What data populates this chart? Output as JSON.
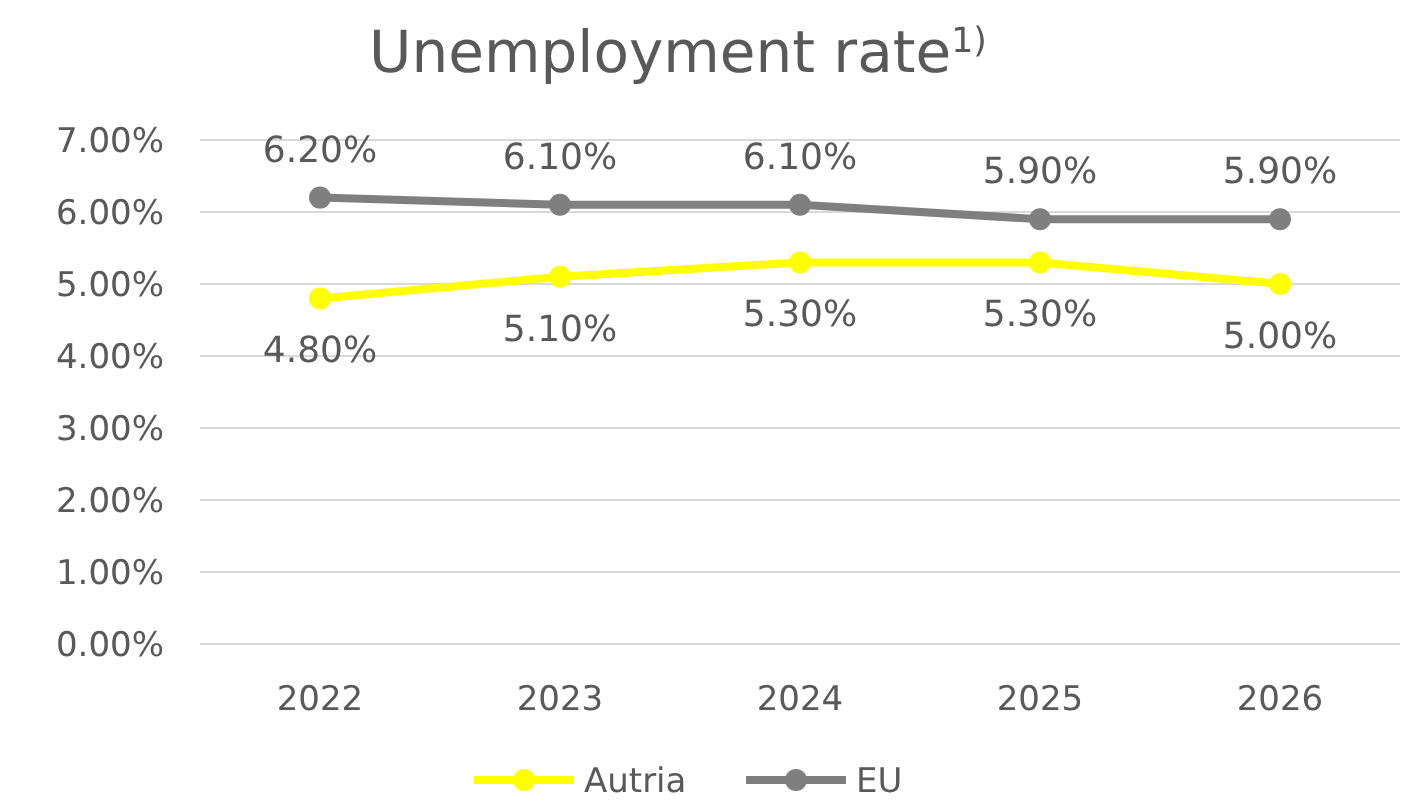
{
  "chart_data": {
    "type": "line",
    "title": "Unemployment rate$^{1)}$",
    "categories": [
      "2022",
      "2023",
      "2024",
      "2025",
      "2026"
    ],
    "series": [
      {
        "name": "Autria",
        "color": "#ffff00",
        "values": [
          4.8,
          5.1,
          5.3,
          5.3,
          5.0
        ],
        "value_labels": [
          "4.80%",
          "5.10%",
          "5.30%",
          "5.30%",
          "5.00%"
        ]
      },
      {
        "name": "EU",
        "color": "#7f7f7f",
        "values": [
          6.2,
          6.1,
          6.1,
          5.9,
          5.9
        ],
        "value_labels": [
          "6.20%",
          "6.10%",
          "6.10%",
          "5.90%",
          "5.90%"
        ]
      }
    ],
    "ylim": [
      0,
      7
    ],
    "yticks": [
      {
        "value": 0,
        "label": "0.00%"
      },
      {
        "value": 1,
        "label": "1.00%"
      },
      {
        "value": 2,
        "label": "2.00%"
      },
      {
        "value": 3,
        "label": "3.00%"
      },
      {
        "value": 4,
        "label": "4.00%"
      },
      {
        "value": 5,
        "label": "5.00%"
      },
      {
        "value": 6,
        "label": "6.00%"
      },
      {
        "value": 7,
        "label": "7.00%"
      }
    ],
    "grid": "y",
    "legend": "bottom",
    "marker": "circle",
    "line_style": "solid"
  }
}
